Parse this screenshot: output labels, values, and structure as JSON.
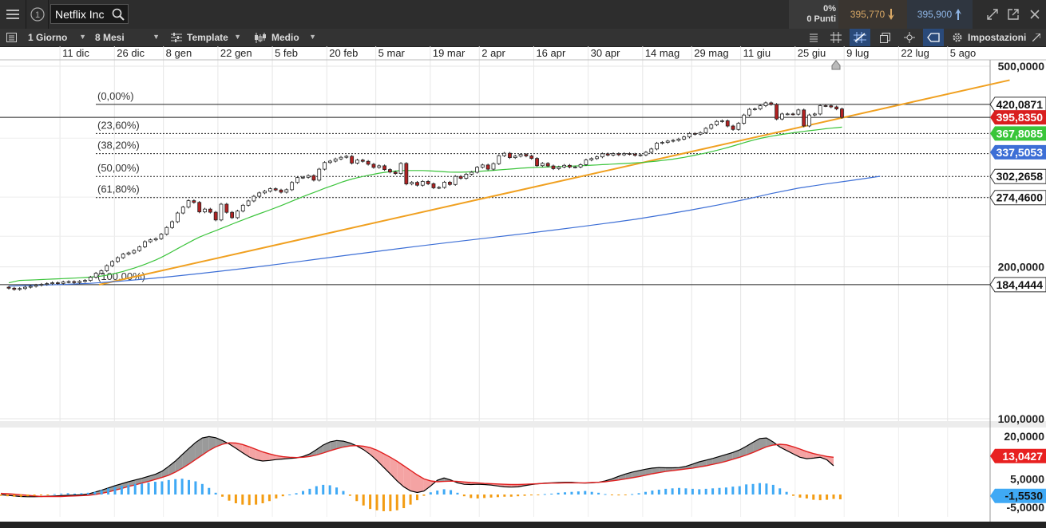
{
  "window": {
    "instrument": "Netflix Inc",
    "change_pct": "0%",
    "change_points": "0 Punti",
    "sell_price": "395,770",
    "buy_price": "395,900"
  },
  "toolbar": {
    "period": "1 Giorno",
    "range": "8 Mesi",
    "template": "Template",
    "chart_style": "Medio",
    "settings": "Impostazioni"
  },
  "icons": {
    "menu": "hamburger-menu-icon",
    "info": "info-icon",
    "search": "search-icon",
    "sell_arrow": "arrow-down-icon",
    "buy_arrow": "arrow-up-icon",
    "expand": "expand-icon",
    "popout": "popout-icon",
    "close": "close-icon",
    "list": "list-icon",
    "template": "sliders-icon",
    "chart_style": "candlestick-icon",
    "indicators": "indicator-list-icon",
    "grid": "grid-icon",
    "crosshair": "crosshair-icon",
    "layers": "layers-icon",
    "pin": "pin-icon",
    "tag": "tag-icon",
    "gear": "gear-icon",
    "maximize": "maximize-icon",
    "scroll_handle": "scroll-handle-icon"
  },
  "colors": {
    "up_candle": "#ffffff",
    "down_candle": "#b22222",
    "trendline": "#f0a020",
    "ma_green": "#3cc43c",
    "ma_blue": "#3d6fd6",
    "macd_line": "#000000",
    "signal_line": "#e02020",
    "hist_pos": "#3fa9f5",
    "hist_neg": "#f39c12",
    "price_tag": "#d91f1f",
    "green_tag": "#39c639",
    "blue_tag": "#3d6fd6",
    "signal_tag": "#e82020",
    "macd_tag": "#3fa9f5"
  },
  "chart_data": [
    {
      "type": "candlestick",
      "x_ticks": [
        "11 dic",
        "26 dic",
        "8 gen",
        "22 gen",
        "5 feb",
        "20 feb",
        "5 mar",
        "19 mar",
        "2 apr",
        "16 apr",
        "30 apr",
        "14 mag",
        "29 mag",
        "11 giu",
        "25 giu",
        "9 lug",
        "22 lug",
        "5 ago"
      ],
      "y_ticks": [
        "500,0000",
        "200,0000",
        "100,0000"
      ],
      "y_tick_values": [
        500,
        200,
        100
      ],
      "y_scale": "log",
      "grid": true,
      "fibonacci": [
        {
          "label": "(0,00%)",
          "value": 420.0871,
          "value_label": "420,0871"
        },
        {
          "label": "(23,60%)",
          "value": 367.8085,
          "value_label": ""
        },
        {
          "label": "(38,20%)",
          "value": 335.5,
          "value_label": ""
        },
        {
          "label": "(50,00%)",
          "value": 302.2658,
          "value_label": "302,2658"
        },
        {
          "label": "(61,80%)",
          "value": 274.46,
          "value_label": "274,4600"
        },
        {
          "label": "(100,00%)",
          "value": 184.4444,
          "value_label": "184,4444"
        }
      ],
      "price_tags": [
        {
          "name": "last-price",
          "value": 395.835,
          "label": "395,8350"
        },
        {
          "name": "ma-green",
          "value": 367.8085,
          "label": "367,8085"
        },
        {
          "name": "ma-blue",
          "value": 337.5053,
          "label": "337,5053"
        }
      ],
      "closes": [
        181.5,
        180.5,
        181.2,
        182.3,
        183.1,
        184.0,
        184.7,
        185.3,
        186.0,
        185.5,
        186.7,
        187.0,
        186.2,
        187.2,
        188.0,
        190.8,
        194.3,
        196.5,
        201.1,
        205.0,
        208.6,
        212.0,
        213.2,
        215.5,
        219.2,
        224.4,
        226.3,
        227.5,
        232.2,
        239.4,
        245.8,
        255.8,
        262.8,
        270.6,
        268.5,
        257.1,
        260.4,
        256.7,
        247.8,
        266.3,
        256.6,
        250.4,
        258.1,
        265.0,
        270.3,
        276.1,
        280.4,
        282.6,
        285.8,
        284.1,
        281.3,
        284.5,
        294.1,
        300.7,
        301.1,
        303.4,
        297.2,
        312.5,
        322.1,
        324.2,
        327.4,
        329.9,
        331.4,
        321.2,
        325.7,
        323.9,
        319.6,
        315.0,
        317.3,
        311.9,
        308.4,
        306.3,
        320.8,
        292.1,
        294.2,
        290.4,
        295.5,
        292.3,
        287.0,
        287.5,
        294.4,
        291.4,
        302.3,
        299.7,
        305.4,
        308.1,
        315.2,
        318.5,
        312.5,
        320.4,
        332.3,
        336.0,
        329.4,
        331.6,
        334.2,
        331.9,
        328.2,
        317.5,
        320.8,
        317.1,
        313.2,
        315.6,
        318.0,
        315.5,
        315.6,
        319.0,
        325.9,
        328.0,
        330.5,
        335.2,
        333.2,
        335.4,
        333.7,
        335.5,
        334.7,
        332.9,
        333.5,
        337.5,
        342.6,
        351.8,
        353.1,
        355.2,
        356.4,
        358.5,
        362.0,
        367.7,
        366.6,
        369.2,
        376.5,
        382.6,
        388.6,
        389.7,
        380.5,
        374.6,
        385.3,
        400.1,
        410.7,
        411.4,
        417.4,
        423.0,
        420.0,
        392.9,
        402.0,
        402.1,
        401.6,
        409.5,
        380.6,
        400.2,
        402.0,
        417.6,
        417.4,
        415.2,
        411.4,
        395.8
      ],
      "ma_green": [
        186.0,
        187.0,
        188.0,
        188.2,
        188.4,
        188.6,
        188.8,
        189.0,
        189.2,
        189.4,
        189.6,
        189.8,
        190.0,
        190.3,
        190.6,
        190.9,
        191.3,
        191.8,
        192.6,
        193.6,
        194.7,
        195.9,
        197.4,
        198.9,
        200.6,
        202.4,
        204.4,
        206.5,
        208.9,
        211.6,
        214.4,
        217.4,
        220.4,
        223.4,
        226.3,
        229.1,
        231.5,
        233.8,
        236.0,
        238.4,
        240.7,
        243.1,
        245.5,
        247.9,
        250.3,
        252.6,
        254.9,
        257.2,
        259.6,
        262.1,
        264.6,
        267.2,
        270.0,
        272.8,
        275.6,
        278.3,
        280.9,
        283.5,
        286.3,
        288.8,
        291.4,
        294.1,
        296.5,
        298.7,
        300.5,
        302.2,
        303.8,
        305.3,
        306.8,
        307.9,
        308.8,
        309.9,
        310.5,
        310.5,
        310.5,
        310.5,
        310.5,
        310.2,
        309.8,
        309.3,
        308.7,
        308.3,
        308.2,
        308.2,
        308.5,
        308.8,
        309.2,
        309.7,
        310.2,
        310.8,
        311.4,
        312.0,
        312.6,
        313.2,
        313.8,
        314.3,
        314.8,
        315.1,
        315.3,
        315.6,
        315.8,
        316.1,
        316.4,
        316.8,
        317.1,
        317.4,
        317.8,
        318.2,
        318.6,
        319.0,
        319.4,
        319.8,
        320.2,
        320.6,
        321.1,
        321.6,
        322.1,
        322.7,
        323.4,
        324.2,
        325.1,
        326.1,
        327.2,
        328.4,
        329.8,
        331.3,
        333.0,
        334.7,
        336.5,
        338.4,
        340.4,
        342.6,
        344.9,
        347.4,
        350.0,
        352.6,
        355.1,
        357.4,
        359.6,
        361.5,
        363.2,
        364.8,
        366.2,
        367.6,
        368.9,
        370.1,
        371.3,
        372.4,
        373.5,
        374.6,
        375.8,
        376.8,
        377.6,
        378.6
      ],
      "ma_blue_range": [
        183,
        354
      ],
      "ma_blue_points": [
        [
          0,
          183.2
        ],
        [
          5,
          183.9
        ],
        [
          10,
          184.6
        ],
        [
          15,
          185.6
        ],
        [
          20,
          187.2
        ],
        [
          25,
          189.2
        ],
        [
          30,
          191.5
        ],
        [
          35,
          194.0
        ],
        [
          40,
          196.8
        ],
        [
          45,
          199.7
        ],
        [
          50,
          202.8
        ],
        [
          55,
          206.1
        ],
        [
          60,
          209.5
        ],
        [
          65,
          212.9
        ],
        [
          70,
          216.3
        ],
        [
          75,
          219.7
        ],
        [
          80,
          223.0
        ],
        [
          85,
          226.3
        ],
        [
          90,
          229.6
        ],
        [
          95,
          233.0
        ],
        [
          100,
          236.6
        ],
        [
          105,
          240.3
        ],
        [
          110,
          244.3
        ],
        [
          115,
          248.5
        ],
        [
          120,
          253.5
        ],
        [
          125,
          259.0
        ],
        [
          130,
          265.1
        ],
        [
          135,
          271.8
        ],
        [
          140,
          279.5
        ],
        [
          145,
          286.5
        ],
        [
          150,
          292.0
        ],
        [
          155,
          297.0
        ],
        [
          160,
          302.5
        ]
      ],
      "trendline": {
        "from_index": 16,
        "from_value": 184.4,
        "to_index": 160,
        "to_value": 411.0,
        "extend_to_index": 175
      },
      "macd_panel": {
        "y_ticks": [
          "20,0000",
          "5,0000",
          "-5,0000"
        ],
        "y_tick_values": [
          20,
          5,
          -5
        ],
        "macd_label": "13,0427",
        "hist_label": "-1,5530",
        "macd": [
          -0.6,
          -0.8,
          -1.0,
          -1.2,
          -1.3,
          -1.3,
          -1.2,
          -1.1,
          -1.0,
          -0.9,
          -0.8,
          -0.7,
          -0.6,
          -0.3,
          0.3,
          1.0,
          1.8,
          2.6,
          3.3,
          4.0,
          4.6,
          5.2,
          5.9,
          6.6,
          7.7,
          9.4,
          11.3,
          13.5,
          15.7,
          17.8,
          19.4,
          19.9,
          19.5,
          18.5,
          17.3,
          15.8,
          14.2,
          12.7,
          11.7,
          11.3,
          11.5,
          11.8,
          12.0,
          12.2,
          12.4,
          12.9,
          13.8,
          15.3,
          16.9,
          18.0,
          18.5,
          18.3,
          17.6,
          16.6,
          15.3,
          13.6,
          11.5,
          9.1,
          6.7,
          4.3,
          2.2,
          0.8,
          0.2,
          0.7,
          2.5,
          4.5,
          5.3,
          4.6,
          3.6,
          3.1,
          3.0,
          3.1,
          3.0,
          2.8,
          2.5,
          2.2,
          2.1,
          2.2,
          2.6,
          3.0,
          3.3,
          3.5,
          3.6,
          3.7,
          3.8,
          3.8,
          3.6,
          3.5,
          3.6,
          3.8,
          4.3,
          5.0,
          5.9,
          6.7,
          7.4,
          7.9,
          8.4,
          8.8,
          9.0,
          8.9,
          8.9,
          9.0,
          9.4,
          10.2,
          11.0,
          11.6,
          12.2,
          12.9,
          13.6,
          14.3,
          15.2,
          16.5,
          17.9,
          19.2,
          19.4,
          18.0,
          16.2,
          15.0,
          13.8,
          12.6,
          12.1,
          12.3,
          12.6,
          11.7,
          9.6
        ],
        "signal": [
          -0.1,
          -0.2,
          -0.4,
          -0.6,
          -0.8,
          -1.0,
          -1.2,
          -1.2,
          -1.2,
          -1.2,
          -1.1,
          -1.0,
          -0.9,
          -0.8,
          -0.5,
          -0.1,
          0.4,
          1.0,
          1.6,
          2.3,
          2.9,
          3.5,
          4.1,
          4.8,
          5.5,
          6.3,
          7.4,
          8.7,
          10.2,
          11.8,
          13.4,
          15.0,
          16.3,
          17.2,
          17.7,
          17.6,
          17.1,
          16.3,
          15.4,
          14.5,
          13.8,
          13.2,
          12.8,
          12.6,
          12.5,
          12.6,
          12.9,
          13.4,
          14.1,
          14.9,
          15.6,
          16.2,
          16.6,
          16.7,
          16.5,
          16.0,
          15.1,
          13.9,
          12.6,
          11.2,
          9.6,
          8.0,
          6.4,
          5.0,
          4.3,
          4.0,
          4.1,
          4.2,
          4.1,
          3.9,
          3.7,
          3.6,
          3.4,
          3.3,
          3.2,
          3.1,
          3.0,
          3.0,
          3.1,
          3.2,
          3.3,
          3.4,
          3.5,
          3.5,
          3.6,
          3.6,
          3.6,
          3.6,
          3.7,
          3.8,
          4.0,
          4.3,
          4.6,
          5.0,
          5.4,
          5.8,
          6.3,
          6.8,
          7.2,
          7.6,
          7.9,
          8.2,
          8.5,
          8.8,
          9.2,
          9.6,
          10.1,
          10.6,
          11.2,
          11.9,
          12.6,
          13.4,
          14.3,
          15.3,
          16.3,
          16.9,
          17.2,
          17.0,
          16.3,
          15.5,
          14.6,
          13.9,
          13.4,
          12.9,
          12.6
        ],
        "histogram": [
          -0.3,
          -0.4,
          -0.5,
          -0.5,
          -0.4,
          -0.3,
          -0.2,
          -0.1,
          0.1,
          0.2,
          0.3,
          0.2,
          0.3,
          0.4,
          0.6,
          1.0,
          1.4,
          1.7,
          2.0,
          2.2,
          2.4,
          2.5,
          2.7,
          2.9,
          3.0,
          3.3,
          3.5,
          3.6,
          3.3,
          3.0,
          2.4,
          1.5,
          0.4,
          -0.5,
          -1.4,
          -2.0,
          -2.3,
          -2.4,
          -2.3,
          -2.0,
          -1.5,
          -0.9,
          -0.4,
          0.0,
          0.3,
          0.8,
          1.3,
          1.9,
          2.2,
          2.1,
          1.6,
          0.8,
          -0.3,
          -1.5,
          -2.5,
          -3.3,
          -3.6,
          -3.8,
          -3.8,
          -3.6,
          -3.1,
          -2.3,
          -1.3,
          -0.3,
          0.5,
          0.9,
          1.2,
          1.0,
          0.4,
          -0.4,
          -0.8,
          -0.9,
          -0.8,
          -0.7,
          -0.6,
          -0.5,
          -0.5,
          -0.4,
          -0.3,
          -0.2,
          -0.1,
          0.1,
          0.2,
          0.4,
          0.5,
          0.6,
          0.7,
          0.8,
          0.6,
          0.4,
          0.1,
          -0.1,
          -0.2,
          -0.1,
          0.1,
          0.3,
          0.6,
          0.9,
          1.1,
          1.3,
          1.4,
          1.5,
          1.4,
          1.3,
          1.2,
          1.3,
          1.4,
          1.5,
          1.6,
          1.8,
          1.9,
          2.3,
          2.4,
          2.6,
          2.5,
          2.2,
          1.4,
          0.6,
          -0.3,
          -0.7,
          -0.9,
          -1.2,
          -1.3,
          -1.2,
          -1.0,
          -1.1
        ]
      }
    }
  ]
}
